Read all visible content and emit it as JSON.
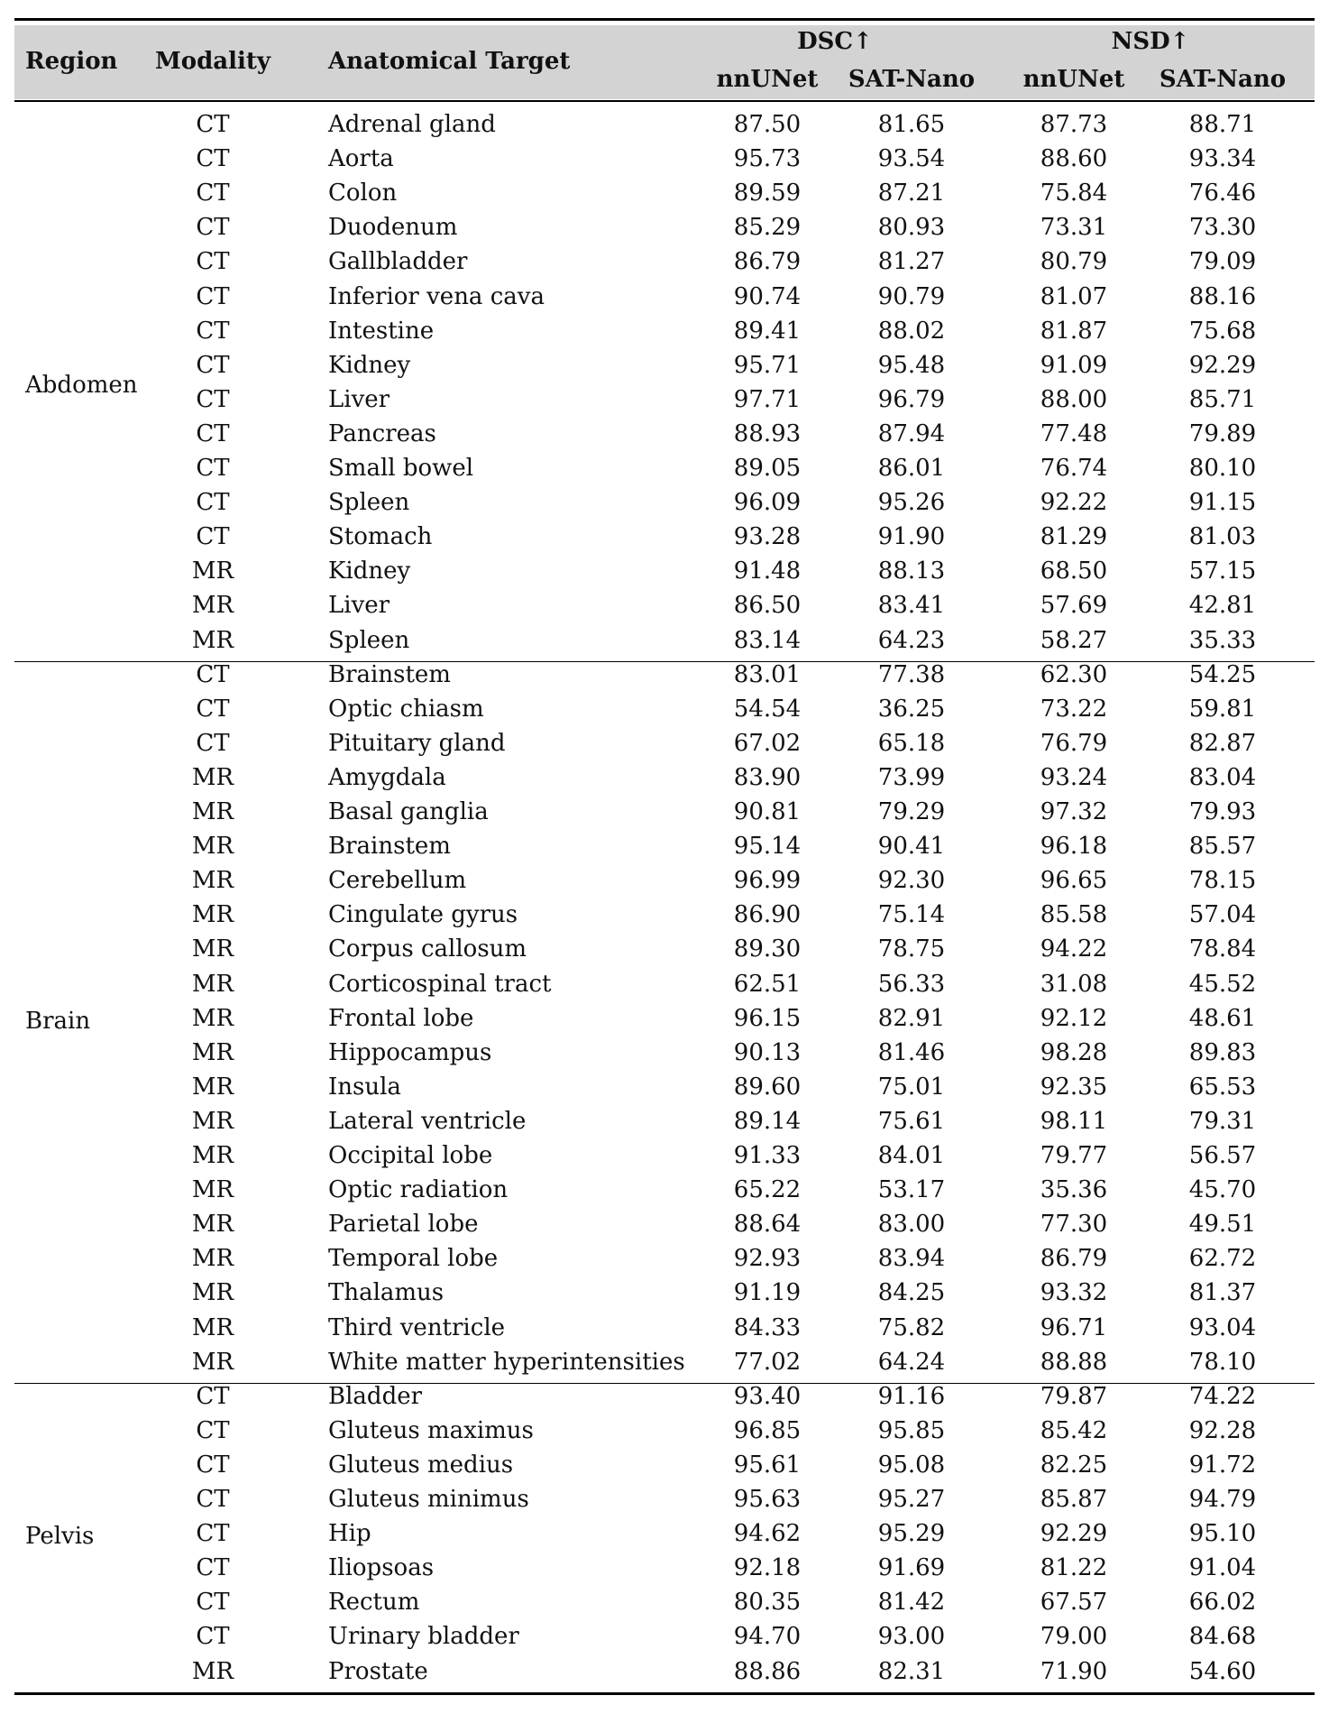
{
  "header": {
    "region": "Region",
    "modality": "Modality",
    "target": "Anatomical Target",
    "dsc": "DSC↑",
    "nsd": "NSD↑",
    "nnunet": "nnUNet",
    "satnano": "SAT-Nano"
  },
  "groups": [
    {
      "region": "Abdomen",
      "rows": [
        [
          "CT",
          "Adrenal gland",
          "87.50",
          "81.65",
          "87.73",
          "88.71"
        ],
        [
          "CT",
          "Aorta",
          "95.73",
          "93.54",
          "88.60",
          "93.34"
        ],
        [
          "CT",
          "Colon",
          "89.59",
          "87.21",
          "75.84",
          "76.46"
        ],
        [
          "CT",
          "Duodenum",
          "85.29",
          "80.93",
          "73.31",
          "73.30"
        ],
        [
          "CT",
          "Gallbladder",
          "86.79",
          "81.27",
          "80.79",
          "79.09"
        ],
        [
          "CT",
          "Inferior vena cava",
          "90.74",
          "90.79",
          "81.07",
          "88.16"
        ],
        [
          "CT",
          "Intestine",
          "89.41",
          "88.02",
          "81.87",
          "75.68"
        ],
        [
          "CT",
          "Kidney",
          "95.71",
          "95.48",
          "91.09",
          "92.29"
        ],
        [
          "CT",
          "Liver",
          "97.71",
          "96.79",
          "88.00",
          "85.71"
        ],
        [
          "CT",
          "Pancreas",
          "88.93",
          "87.94",
          "77.48",
          "79.89"
        ],
        [
          "CT",
          "Small bowel",
          "89.05",
          "86.01",
          "76.74",
          "80.10"
        ],
        [
          "CT",
          "Spleen",
          "96.09",
          "95.26",
          "92.22",
          "91.15"
        ],
        [
          "CT",
          "Stomach",
          "93.28",
          "91.90",
          "81.29",
          "81.03"
        ],
        [
          "MR",
          "Kidney",
          "91.48",
          "88.13",
          "68.50",
          "57.15"
        ],
        [
          "MR",
          "Liver",
          "86.50",
          "83.41",
          "57.69",
          "42.81"
        ],
        [
          "MR",
          "Spleen",
          "83.14",
          "64.23",
          "58.27",
          "35.33"
        ]
      ]
    },
    {
      "region": "Brain",
      "rows": [
        [
          "CT",
          "Brainstem",
          "83.01",
          "77.38",
          "62.30",
          "54.25"
        ],
        [
          "CT",
          "Optic chiasm",
          "54.54",
          "36.25",
          "73.22",
          "59.81"
        ],
        [
          "CT",
          "Pituitary gland",
          "67.02",
          "65.18",
          "76.79",
          "82.87"
        ],
        [
          "MR",
          "Amygdala",
          "83.90",
          "73.99",
          "93.24",
          "83.04"
        ],
        [
          "MR",
          "Basal ganglia",
          "90.81",
          "79.29",
          "97.32",
          "79.93"
        ],
        [
          "MR",
          "Brainstem",
          "95.14",
          "90.41",
          "96.18",
          "85.57"
        ],
        [
          "MR",
          "Cerebellum",
          "96.99",
          "92.30",
          "96.65",
          "78.15"
        ],
        [
          "MR",
          "Cingulate gyrus",
          "86.90",
          "75.14",
          "85.58",
          "57.04"
        ],
        [
          "MR",
          "Corpus callosum",
          "89.30",
          "78.75",
          "94.22",
          "78.84"
        ],
        [
          "MR",
          "Corticospinal tract",
          "62.51",
          "56.33",
          "31.08",
          "45.52"
        ],
        [
          "MR",
          "Frontal lobe",
          "96.15",
          "82.91",
          "92.12",
          "48.61"
        ],
        [
          "MR",
          "Hippocampus",
          "90.13",
          "81.46",
          "98.28",
          "89.83"
        ],
        [
          "MR",
          "Insula",
          "89.60",
          "75.01",
          "92.35",
          "65.53"
        ],
        [
          "MR",
          "Lateral ventricle",
          "89.14",
          "75.61",
          "98.11",
          "79.31"
        ],
        [
          "MR",
          "Occipital lobe",
          "91.33",
          "84.01",
          "79.77",
          "56.57"
        ],
        [
          "MR",
          "Optic radiation",
          "65.22",
          "53.17",
          "35.36",
          "45.70"
        ],
        [
          "MR",
          "Parietal lobe",
          "88.64",
          "83.00",
          "77.30",
          "49.51"
        ],
        [
          "MR",
          "Temporal lobe",
          "92.93",
          "83.94",
          "86.79",
          "62.72"
        ],
        [
          "MR",
          "Thalamus",
          "91.19",
          "84.25",
          "93.32",
          "81.37"
        ],
        [
          "MR",
          "Third ventricle",
          "84.33",
          "75.82",
          "96.71",
          "93.04"
        ],
        [
          "MR",
          "White matter hyperintensities",
          "77.02",
          "64.24",
          "88.88",
          "78.10"
        ]
      ]
    },
    {
      "region": "Pelvis",
      "rows": [
        [
          "CT",
          "Bladder",
          "93.40",
          "91.16",
          "79.87",
          "74.22"
        ],
        [
          "CT",
          "Gluteus maximus",
          "96.85",
          "95.85",
          "85.42",
          "92.28"
        ],
        [
          "CT",
          "Gluteus medius",
          "95.61",
          "95.08",
          "82.25",
          "91.72"
        ],
        [
          "CT",
          "Gluteus minimus",
          "95.63",
          "95.27",
          "85.87",
          "94.79"
        ],
        [
          "CT",
          "Hip",
          "94.62",
          "95.29",
          "92.29",
          "95.10"
        ],
        [
          "CT",
          "Iliopsoas",
          "92.18",
          "91.69",
          "81.22",
          "91.04"
        ],
        [
          "CT",
          "Rectum",
          "80.35",
          "81.42",
          "67.57",
          "66.02"
        ],
        [
          "CT",
          "Urinary bladder",
          "94.70",
          "93.00",
          "79.00",
          "84.68"
        ],
        [
          "MR",
          "Prostate",
          "88.86",
          "82.31",
          "71.90",
          "54.60"
        ]
      ]
    }
  ]
}
